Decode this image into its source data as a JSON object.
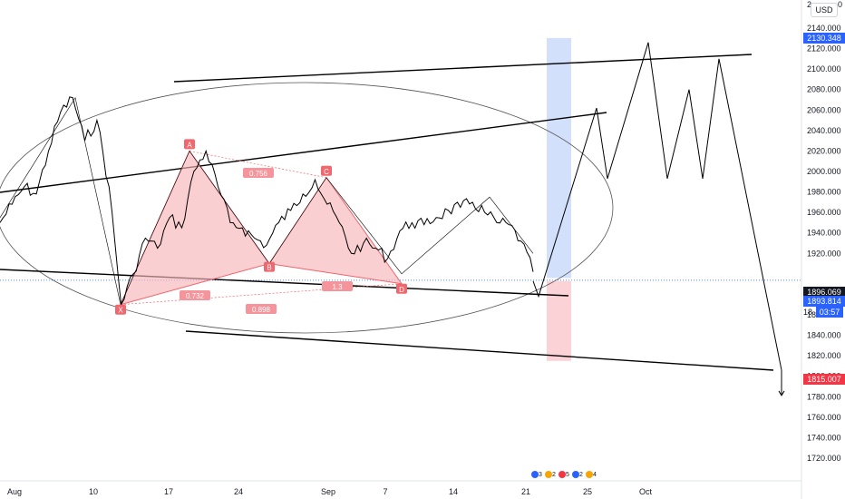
{
  "colors": {
    "up_tag": "#2962ff",
    "down_tag": "#f23645",
    "last_tag": "#131722",
    "pattern_fill": "#f7b6b8",
    "pattern_line": "#f0676e",
    "target_up": "#d3e0fb",
    "target_down": "#fbd3d6"
  },
  "price_axis": {
    "currency": "USD",
    "ticks": [
      "2140.000",
      "2120.000",
      "2100.000",
      "2080.000",
      "2060.000",
      "2040.000",
      "2020.000",
      "2000.000",
      "1980.000",
      "1960.000",
      "1940.000",
      "1920.000",
      "1860.000",
      "1840.000",
      "1820.000",
      "1800.000",
      "1780.000",
      "1760.000",
      "1740.000",
      "1720.000"
    ],
    "tag_upper": "2130.348",
    "tag_last": "1896.069",
    "tag_current": "1893.814",
    "tag_countdown": "03:57",
    "tag_countdown_prefix": "18",
    "tag_lower": "1815.007",
    "top_partial": [
      "2",
      "0"
    ]
  },
  "time_axis": {
    "ticks": [
      "Aug",
      "10",
      "17",
      "24",
      "Sep",
      "7",
      "14",
      "21",
      "25",
      "Oct"
    ]
  },
  "pattern": {
    "points": [
      "X",
      "A",
      "B",
      "C",
      "D"
    ],
    "ratios": [
      "0.756",
      "0.732",
      "1.3",
      "0.898"
    ]
  },
  "event_badges": [
    "3",
    "2",
    "5",
    "2",
    "4"
  ],
  "chart_data": {
    "type": "line",
    "title": "",
    "xlabel": "",
    "ylabel": "",
    "ylim": [
      1715,
      2150
    ],
    "x_ticks": [
      "Aug",
      "10",
      "17",
      "24",
      "Sep",
      "7",
      "14",
      "21",
      "25",
      "Oct"
    ],
    "series": [
      {
        "values": [
          1950,
          1968,
          1985,
          1978,
          2020,
          2058,
          2072,
          2030,
          2050,
          1985,
          1870,
          1900,
          1935,
          1925,
          1955,
          1945,
          2000,
          2020,
          1985,
          1950,
          1945,
          1935,
          1928,
          1950,
          1962,
          1978,
          1992,
          1968,
          1950,
          1920,
          1930,
          1925,
          1915,
          1942,
          1950,
          1948,
          1955,
          1962,
          1965,
          1970,
          1960,
          1950,
          1948,
          1932,
          1902
        ]
      }
    ],
    "harmonic_pattern": {
      "X": 1870,
      "A": 2020,
      "B": 1910,
      "C": 1994,
      "D": 1893,
      "ratios": {
        "XA_B": 0.732,
        "AB_C": 0.756,
        "BC_D": 1.3,
        "XA_D": 0.898
      }
    },
    "projection": [
      1893,
      1878,
      2062,
      1993,
      2126,
      1993,
      2080,
      1993,
      2110,
      1806
    ],
    "levels": {
      "upper": 2130.348,
      "last": 1896.069,
      "current": 1893.814,
      "lower": 1815.007
    }
  }
}
